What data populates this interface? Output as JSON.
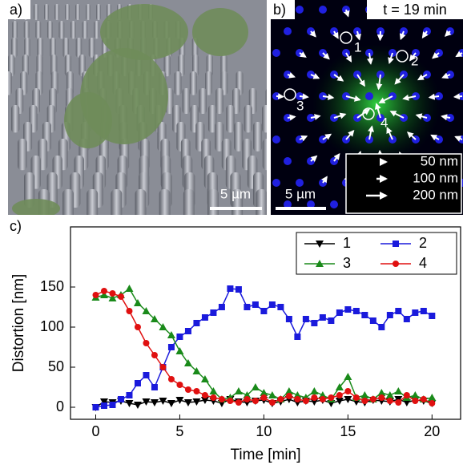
{
  "panels": {
    "a": {
      "label": "a)",
      "scale": "5 µm"
    },
    "b": {
      "label": "b)",
      "time": "t = 19 min",
      "points": [
        "1",
        "2",
        "3",
        "4"
      ],
      "arrow_legend": [
        "50 nm",
        "100 nm",
        "200 nm"
      ],
      "scale": "5 µm"
    },
    "c": {
      "label": "c)"
    }
  },
  "chart_data": {
    "type": "line",
    "x_label": "Time [min]",
    "y_label": "Distortion [nm]",
    "x": [
      0,
      0.5,
      1,
      1.5,
      2,
      2.5,
      3,
      3.5,
      4,
      4.5,
      5,
      5.5,
      6,
      6.5,
      7,
      7.5,
      8,
      8.5,
      9,
      9.5,
      10,
      10.5,
      11,
      11.5,
      12,
      12.5,
      13,
      13.5,
      14,
      14.5,
      15,
      15.5,
      16,
      16.5,
      17,
      17.5,
      18,
      18.5,
      19,
      19.5,
      20
    ],
    "series": [
      {
        "name": "1",
        "color": "#000000",
        "marker": "triangle-down",
        "values": [
          0,
          7,
          6,
          8,
          5,
          3,
          7,
          6,
          8,
          5,
          9,
          6,
          7,
          9,
          8,
          5,
          10,
          7,
          6,
          8,
          9,
          5,
          7,
          10,
          6,
          8,
          7,
          9,
          5,
          8,
          10,
          7,
          6,
          9,
          8,
          7,
          10,
          6,
          9,
          8,
          5
        ]
      },
      {
        "name": "2",
        "color": "#1a1adc",
        "marker": "square",
        "values": [
          0,
          2,
          3,
          10,
          15,
          30,
          40,
          25,
          50,
          75,
          88,
          95,
          105,
          112,
          118,
          125,
          148,
          147,
          125,
          128,
          120,
          128,
          125,
          110,
          88,
          110,
          105,
          112,
          108,
          118,
          122,
          120,
          115,
          108,
          100,
          115,
          120,
          110,
          118,
          120,
          114
        ]
      },
      {
        "name": "3",
        "color": "#1a8a1a",
        "marker": "triangle-up",
        "values": [
          137,
          140,
          136,
          140,
          148,
          130,
          120,
          110,
          100,
          90,
          70,
          55,
          45,
          35,
          20,
          10,
          12,
          20,
          15,
          25,
          18,
          15,
          10,
          20,
          15,
          12,
          20,
          15,
          10,
          25,
          38,
          12,
          15,
          10,
          18,
          15,
          20,
          12,
          15,
          10,
          12
        ]
      },
      {
        "name": "4",
        "color": "#e01010",
        "marker": "circle",
        "values": [
          140,
          145,
          142,
          138,
          120,
          100,
          80,
          65,
          50,
          35,
          28,
          22,
          20,
          15,
          12,
          10,
          8,
          6,
          10,
          8,
          12,
          6,
          10,
          14,
          10,
          8,
          12,
          10,
          12,
          15,
          20,
          12,
          8,
          10,
          12,
          8,
          6,
          15,
          8,
          10,
          5
        ]
      }
    ],
    "xlim": [
      -1.5,
      21.7
    ],
    "ylim": [
      -15,
      225
    ],
    "xticks": [
      0,
      5,
      10,
      15,
      20
    ],
    "yticks": [
      0,
      50,
      100,
      150
    ],
    "legend": "top-right",
    "grid": false
  }
}
